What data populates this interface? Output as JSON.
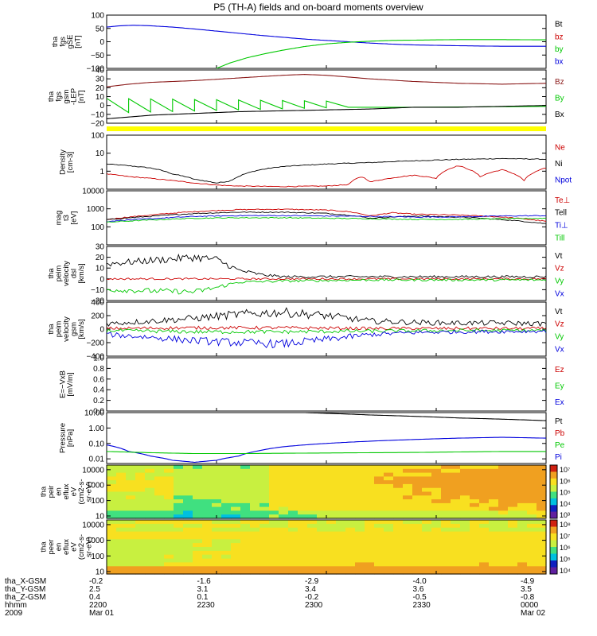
{
  "figure": {
    "title": "P5 (TH-A) fields and on-board moments overview"
  },
  "colors": {
    "black": "#000000",
    "red": "#cc0000",
    "bz_red": "#b01010",
    "green": "#00c800",
    "blue": "#0000dd",
    "brown": "#8b1a1a",
    "yellow": "#ffff00"
  },
  "chart_data": [
    {
      "id": "fgs_gse",
      "type": "line",
      "ylabel": [
        "tha",
        "fgs",
        "gSE",
        "[nT]"
      ],
      "ylim": [
        -100,
        100
      ],
      "yticks": [
        -100,
        -50,
        0,
        50,
        100
      ],
      "ytick_labels": [
        "−100",
        "−50",
        "0",
        "50",
        "100"
      ],
      "legend": [
        "Bt",
        "bz",
        "by",
        "bx"
      ],
      "legend_colors": [
        "#000000",
        "#cc0000",
        "#00c800",
        "#0000dd"
      ],
      "series": [
        {
          "name": "bx",
          "color": "#0000dd",
          "x": [
            0,
            0.03,
            0.06,
            0.1,
            0.15,
            0.2,
            0.25,
            0.3,
            0.35,
            0.4,
            0.45,
            0.5,
            0.55,
            0.6,
            0.65,
            0.7,
            0.8,
            0.9,
            1
          ],
          "y": [
            55,
            60,
            62,
            60,
            55,
            48,
            40,
            32,
            24,
            17,
            10,
            5,
            0,
            -5,
            -9,
            -12,
            -15,
            -17,
            -17
          ]
        },
        {
          "name": "by",
          "color": "#00c800",
          "x": [
            0.25,
            0.28,
            0.32,
            0.36,
            0.4,
            0.45,
            0.5,
            0.55,
            0.6,
            0.65,
            0.7,
            0.8,
            0.9,
            1
          ],
          "y": [
            -100,
            -80,
            -60,
            -45,
            -32,
            -18,
            -8,
            -2,
            2,
            5,
            6,
            8,
            8,
            7
          ]
        }
      ]
    },
    {
      "id": "fgs_gsm",
      "type": "line",
      "ylabel": [
        "tha",
        "fgs",
        "gsm",
        "-LEP",
        "[nT]"
      ],
      "ylim": [
        -20,
        40
      ],
      "yticks": [
        -20,
        -10,
        0,
        10,
        20,
        30,
        40
      ],
      "ytick_labels": [
        "−20",
        "−10",
        "0",
        "10",
        "20",
        "30",
        "40"
      ],
      "legend": [
        "Bz",
        "By",
        "Bx"
      ],
      "legend_colors": [
        "#8b1a1a",
        "#00c800",
        "#000000"
      ],
      "series": [
        {
          "name": "Bz",
          "color": "#8b1a1a",
          "x": [
            0,
            0.05,
            0.1,
            0.2,
            0.3,
            0.4,
            0.45,
            0.5,
            0.55,
            0.6,
            0.7,
            0.8,
            0.9,
            1
          ],
          "y": [
            21,
            24,
            26,
            28,
            31,
            34,
            35,
            34,
            32,
            30,
            27,
            25,
            24,
            25
          ]
        },
        {
          "name": "Bx",
          "color": "#000000",
          "x": [
            0,
            0.05,
            0.1,
            0.2,
            0.3,
            0.4,
            0.5,
            0.6,
            0.7,
            0.8,
            0.9,
            1
          ],
          "y": [
            -15,
            -13,
            -11,
            -9,
            -7,
            -6,
            -5,
            -4,
            -2,
            -2,
            -1,
            0
          ]
        }
      ]
    },
    {
      "id": "density",
      "type": "line",
      "ylog": true,
      "ylabel": [
        "Density",
        "[cm-3]"
      ],
      "ylim": [
        0.1,
        100
      ],
      "yticks": [
        1,
        10,
        100
      ],
      "ytick_labels": [
        "1",
        "10",
        "100"
      ],
      "legend": [
        "Ne",
        "Ni",
        "Npot"
      ],
      "legend_colors": [
        "#cc0000",
        "#000000",
        "#0000dd"
      ],
      "series": [
        {
          "name": "Ni",
          "color": "#000000",
          "x": [
            0,
            0.05,
            0.1,
            0.15,
            0.2,
            0.25,
            0.28,
            0.3,
            0.35,
            0.4,
            0.5,
            0.6,
            0.7,
            0.8,
            0.9,
            1
          ],
          "y": [
            2.5,
            2,
            1.5,
            0.7,
            0.35,
            0.22,
            0.28,
            0.5,
            1.2,
            1.8,
            2.5,
            3,
            3.8,
            4.5,
            5,
            4.6
          ]
        },
        {
          "name": "Ne",
          "color": "#cc0000",
          "x": [
            0,
            0.05,
            0.1,
            0.15,
            0.2,
            0.25,
            0.3,
            0.4,
            0.5,
            0.55,
            0.58,
            0.6,
            0.7,
            0.75,
            0.8,
            0.85,
            0.9,
            0.95,
            1
          ],
          "y": [
            0.7,
            0.5,
            0.4,
            0.3,
            0.22,
            0.17,
            0.15,
            0.14,
            0.15,
            0.18,
            0.5,
            0.25,
            0.6,
            0.4,
            2,
            0.5,
            1.2,
            0.3,
            1.5
          ]
        }
      ]
    },
    {
      "id": "temperature",
      "type": "line",
      "ylog": true,
      "ylabel": [
        "mag",
        "t3",
        "[eV]"
      ],
      "ylim": [
        10,
        10000
      ],
      "yticks": [
        100,
        1000,
        10000
      ],
      "ytick_labels": [
        "100",
        "1000",
        "10000"
      ],
      "legend": [
        "Te⊥",
        "Tell",
        "Ti⊥",
        "Till"
      ],
      "legend_colors": [
        "#cc0000",
        "#000000",
        "#0000dd",
        "#00c800"
      ],
      "series": [
        {
          "name": "Te⊥",
          "color": "#cc0000",
          "x": [
            0,
            0.1,
            0.2,
            0.3,
            0.4,
            0.5,
            0.55,
            0.6,
            0.65,
            0.7,
            0.8,
            0.9,
            1
          ],
          "y": [
            250,
            450,
            700,
            900,
            950,
            850,
            700,
            400,
            600,
            500,
            450,
            350,
            200
          ]
        },
        {
          "name": "Tell",
          "color": "#000000",
          "x": [
            0,
            0.1,
            0.2,
            0.3,
            0.4,
            0.5,
            0.55,
            0.6,
            0.7,
            0.8,
            0.9,
            1
          ],
          "y": [
            250,
            380,
            550,
            650,
            650,
            560,
            450,
            300,
            400,
            350,
            250,
            150
          ]
        },
        {
          "name": "Ti⊥",
          "color": "#0000dd",
          "x": [
            0,
            0.1,
            0.2,
            0.3,
            0.4,
            0.5,
            0.6,
            0.7,
            0.8,
            0.9,
            1
          ],
          "y": [
            200,
            280,
            380,
            420,
            420,
            400,
            380,
            350,
            360,
            400,
            420
          ]
        },
        {
          "name": "Till",
          "color": "#00c800",
          "x": [
            0,
            0.1,
            0.2,
            0.3,
            0.4,
            0.5,
            0.6,
            0.7,
            0.8,
            0.9,
            1
          ],
          "y": [
            180,
            240,
            300,
            320,
            320,
            300,
            280,
            260,
            260,
            280,
            300
          ]
        }
      ]
    },
    {
      "id": "velocity_dsl",
      "type": "line",
      "ylabel": [
        "tha",
        "peim",
        "velocity",
        "dsl",
        "[km/s]"
      ],
      "ylim": [
        -20,
        30
      ],
      "yticks": [
        -20,
        -10,
        0,
        10,
        20,
        30
      ],
      "ytick_labels": [
        "−20",
        "−10",
        "0",
        "10",
        "20",
        "30"
      ],
      "legend": [
        "Vt",
        "Vz",
        "Vy",
        "Vx"
      ],
      "legend_colors": [
        "#000000",
        "#cc0000",
        "#00c800",
        "#0000dd"
      ],
      "series": [
        {
          "name": "Vt",
          "color": "#000000",
          "x": [
            0,
            0.1,
            0.2,
            0.25,
            0.3,
            0.35,
            0.4,
            0.5,
            0.6,
            0.7,
            0.8,
            0.9,
            1
          ],
          "y": [
            14,
            17,
            20,
            18,
            8,
            4,
            2,
            2,
            2,
            2,
            2,
            2,
            2
          ]
        },
        {
          "name": "Vz",
          "color": "#cc0000",
          "x": [
            0,
            0.2,
            0.4,
            0.6,
            0.8,
            1
          ],
          "y": [
            0,
            0,
            0,
            0,
            0,
            0
          ]
        },
        {
          "name": "Vy",
          "color": "#00c800",
          "x": [
            0,
            0.1,
            0.2,
            0.25,
            0.3,
            0.4,
            0.6,
            0.8,
            1
          ],
          "y": [
            -10,
            -11,
            -12,
            -8,
            -3,
            -2,
            -1,
            -1,
            -1
          ]
        }
      ]
    },
    {
      "id": "velocity_gsm",
      "type": "line",
      "ylabel": [
        "tha",
        "peim",
        "velocity",
        "gsm",
        "[km/s]"
      ],
      "ylim": [
        -400,
        400
      ],
      "yticks": [
        -400,
        -200,
        0,
        200,
        400
      ],
      "ytick_labels": [
        "−400",
        "−200",
        "0",
        "200",
        "400"
      ],
      "legend": [
        "Vt",
        "Vz",
        "Vy",
        "Vx"
      ],
      "legend_colors": [
        "#000000",
        "#cc0000",
        "#00c800",
        "#0000dd"
      ],
      "series": [
        {
          "name": "Vt",
          "color": "#000000",
          "x": [
            0,
            0.1,
            0.2,
            0.3,
            0.4,
            0.5,
            0.6,
            0.7,
            0.8,
            0.9,
            1
          ],
          "y": [
            80,
            120,
            160,
            220,
            250,
            200,
            120,
            100,
            90,
            90,
            80
          ]
        },
        {
          "name": "Vz",
          "color": "#cc0000",
          "x": [
            0,
            0.2,
            0.4,
            0.6,
            0.8,
            1
          ],
          "y": [
            10,
            20,
            20,
            10,
            10,
            10
          ]
        },
        {
          "name": "Vy",
          "color": "#00c800",
          "x": [
            0,
            0.2,
            0.4,
            0.6,
            0.8,
            1
          ],
          "y": [
            -20,
            -40,
            -40,
            -30,
            -20,
            -20
          ]
        },
        {
          "name": "Vx",
          "color": "#0000dd",
          "x": [
            0,
            0.1,
            0.2,
            0.3,
            0.4,
            0.5,
            0.6,
            0.7,
            0.8,
            1
          ],
          "y": [
            -80,
            -120,
            -170,
            -200,
            -220,
            -150,
            -80,
            -50,
            -40,
            -30
          ]
        }
      ]
    },
    {
      "id": "efield",
      "type": "line",
      "ylabel": [
        "E=−VxB",
        "[mV/m]"
      ],
      "ylim": [
        0,
        1
      ],
      "yticks": [
        0,
        0.2,
        0.4,
        0.6,
        0.8,
        1.0
      ],
      "ytick_labels": [
        "0.0",
        "0.2",
        "0.4",
        "0.6",
        "0.8",
        "1.0"
      ],
      "legend": [
        "Ez",
        "Ey",
        "Ex"
      ],
      "legend_colors": [
        "#cc0000",
        "#00c800",
        "#0000dd"
      ],
      "series": []
    },
    {
      "id": "pressure",
      "type": "line",
      "ylog": true,
      "ylabel": [
        "Pressure",
        "[nPa]"
      ],
      "ylim": [
        0.005,
        10
      ],
      "yticks": [
        0.01,
        0.1,
        1,
        10
      ],
      "ytick_labels": [
        "0.01",
        "0.10",
        "1.00",
        "10.00"
      ],
      "legend": [
        "Pt",
        "Pb",
        "Pe",
        "Pi"
      ],
      "legend_colors": [
        "#000000",
        "#cc0000",
        "#00c800",
        "#0000dd"
      ],
      "series": [
        {
          "name": "Pt",
          "color": "#000000",
          "x": [
            0.45,
            0.6,
            0.8,
            1
          ],
          "y": [
            10,
            7,
            4.5,
            3
          ]
        },
        {
          "name": "Pi",
          "color": "#0000dd",
          "x": [
            0,
            0.05,
            0.1,
            0.15,
            0.2,
            0.25,
            0.3,
            0.35,
            0.4,
            0.5,
            0.6,
            0.7,
            0.8,
            0.9,
            1
          ],
          "y": [
            0.08,
            0.03,
            0.015,
            0.008,
            0.006,
            0.008,
            0.015,
            0.035,
            0.06,
            0.1,
            0.14,
            0.18,
            0.22,
            0.25,
            0.22
          ]
        },
        {
          "name": "Pe",
          "color": "#00c800",
          "x": [
            0,
            0.1,
            0.2,
            0.3,
            0.4,
            0.5,
            0.6,
            0.7,
            0.8,
            0.9,
            1
          ],
          "y": [
            0.03,
            0.025,
            0.022,
            0.022,
            0.023,
            0.024,
            0.025,
            0.026,
            0.028,
            0.03,
            0.03
          ]
        }
      ]
    },
    {
      "id": "ion_spectrogram",
      "type": "heatmap",
      "ylog": true,
      "ylabel": [
        "tha",
        "peir",
        "en",
        "eflux",
        "eV",
        "(cm2-s-",
        "sr-eV)"
      ],
      "ylim": [
        7,
        20000
      ],
      "yticks": [
        10,
        100,
        1000,
        10000
      ],
      "ytick_labels": [
        "10",
        "100",
        "1000",
        "10000"
      ],
      "colorbar_ticks": [
        "10⁷",
        "10⁶",
        "10⁵",
        "10⁴",
        "10³"
      ]
    },
    {
      "id": "electron_spectrogram",
      "type": "heatmap",
      "ylog": true,
      "ylabel": [
        "tha",
        "peer",
        "en",
        "eflux",
        "eV",
        "(cm2-s-",
        "sr-eV)"
      ],
      "ylim": [
        7,
        20000
      ],
      "yticks": [
        10,
        100,
        1000,
        10000
      ],
      "ytick_labels": [
        "10",
        "100",
        "1000",
        "10000"
      ],
      "colorbar_ticks": [
        "10⁸",
        "10⁷",
        "10⁶",
        "10⁵",
        "10⁴"
      ]
    }
  ],
  "bottom_axis": {
    "row_labels": [
      "tha_X-GSM",
      "tha_Y-GSM",
      "tha_Z-GSM",
      "hhmm",
      "2009"
    ],
    "ticks": [
      {
        "x": 0,
        "values": [
          "-0.2",
          "2.5",
          "0.4",
          "2200",
          "Mar 01"
        ]
      },
      {
        "x": 0.25,
        "values": [
          "-1.6",
          "3.1",
          "0.1",
          "2230",
          ""
        ]
      },
      {
        "x": 0.5,
        "values": [
          "-2.9",
          "3.4",
          "-0.2",
          "2300",
          ""
        ]
      },
      {
        "x": 0.75,
        "values": [
          "-4.0",
          "3.6",
          "-0.5",
          "2330",
          ""
        ]
      },
      {
        "x": 1,
        "values": [
          "-4.9",
          "3.5",
          "-0.8",
          "0000",
          "Mar 02"
        ]
      }
    ]
  }
}
